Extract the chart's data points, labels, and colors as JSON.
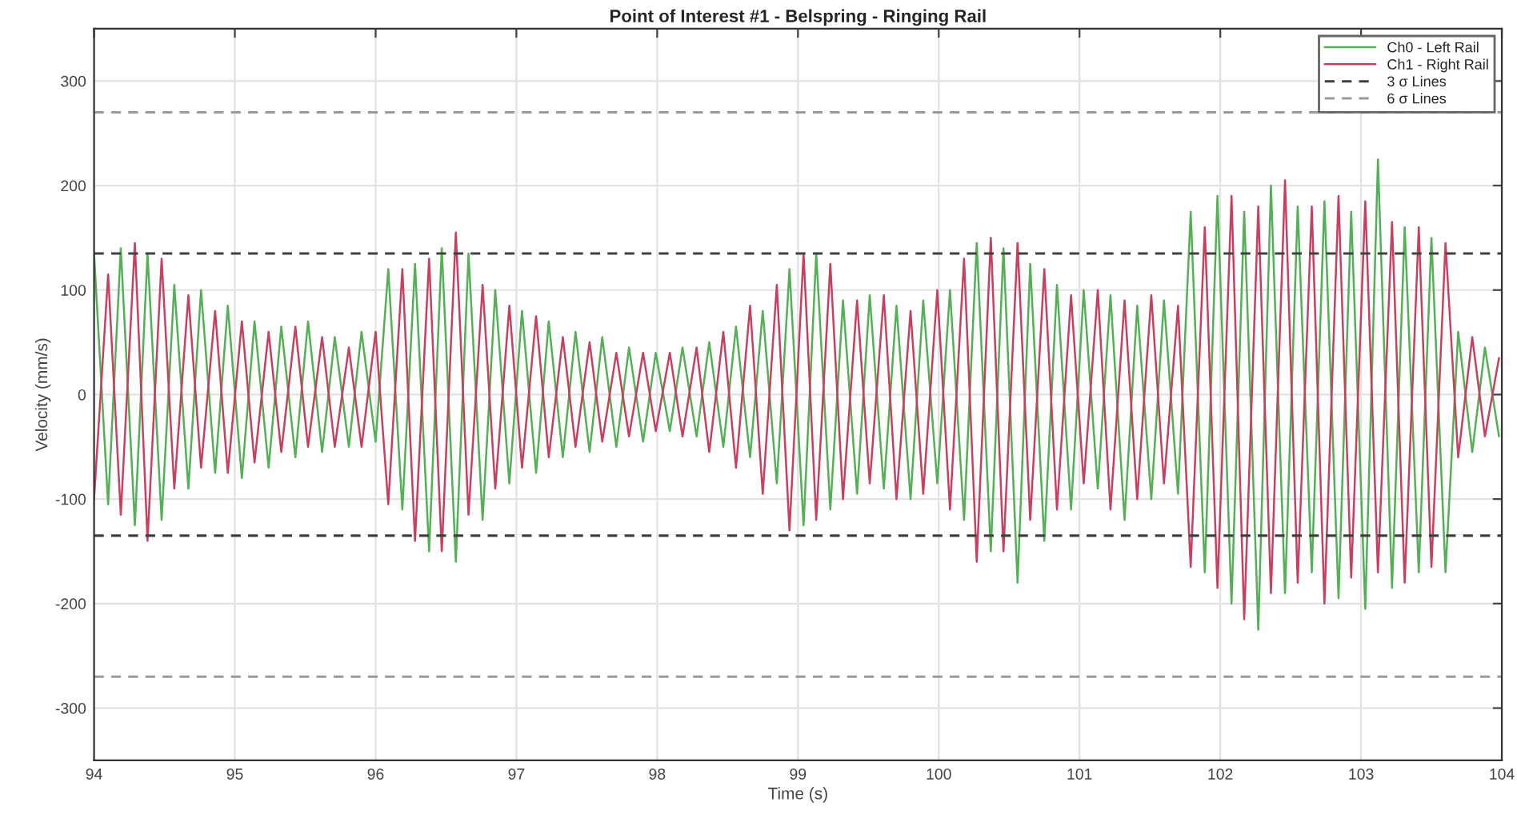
{
  "chart_data": {
    "type": "line",
    "title": "Point of Interest #1 - Belspring - Ringing Rail",
    "xlabel": "Time (s)",
    "ylabel": "Velocity (mm/s)",
    "x": [
      94.0,
      94.1,
      94.19,
      94.29,
      94.38,
      94.48,
      94.57,
      94.67,
      94.76,
      94.86,
      94.95,
      95.05,
      95.14,
      95.24,
      95.33,
      95.43,
      95.52,
      95.62,
      95.71,
      95.81,
      95.9,
      96.0,
      96.09,
      96.19,
      96.28,
      96.38,
      96.47,
      96.57,
      96.66,
      96.76,
      96.85,
      96.95,
      97.04,
      97.14,
      97.23,
      97.33,
      97.42,
      97.52,
      97.61,
      97.71,
      97.8,
      97.9,
      97.99,
      98.09,
      98.18,
      98.28,
      98.37,
      98.47,
      98.56,
      98.66,
      98.75,
      98.85,
      98.94,
      99.04,
      99.13,
      99.23,
      99.32,
      99.42,
      99.51,
      99.61,
      99.7,
      99.8,
      99.89,
      99.99,
      100.08,
      100.18,
      100.27,
      100.37,
      100.46,
      100.56,
      100.65,
      100.75,
      100.84,
      100.94,
      101.03,
      101.13,
      101.22,
      101.32,
      101.41,
      101.51,
      101.6,
      101.7,
      101.79,
      101.89,
      101.98,
      102.08,
      102.17,
      102.27,
      102.36,
      102.46,
      102.55,
      102.65,
      102.74,
      102.84,
      102.93,
      103.03,
      103.12,
      103.22,
      103.31,
      103.41,
      103.5,
      103.6,
      103.69,
      103.79,
      103.88,
      103.98
    ],
    "series": [
      {
        "name": "Ch0 - Left Rail",
        "color": "#55b055",
        "values": [
          135,
          -105,
          140,
          -125,
          135,
          -120,
          105,
          -90,
          100,
          -75,
          85,
          -80,
          70,
          -70,
          65,
          -60,
          70,
          -55,
          55,
          -50,
          60,
          -45,
          120,
          -110,
          125,
          -150,
          140,
          -160,
          135,
          -120,
          100,
          -85,
          80,
          -75,
          70,
          -60,
          60,
          -55,
          55,
          -50,
          45,
          -45,
          40,
          -35,
          45,
          -40,
          50,
          -50,
          65,
          -60,
          80,
          -85,
          120,
          -125,
          135,
          -110,
          90,
          -95,
          95,
          -90,
          85,
          -100,
          90,
          -85,
          100,
          -120,
          145,
          -150,
          140,
          -180,
          125,
          -140,
          105,
          -110,
          100,
          -90,
          95,
          -120,
          85,
          -100,
          90,
          -95,
          175,
          -170,
          190,
          -200,
          175,
          -225,
          200,
          -190,
          180,
          -170,
          185,
          -195,
          175,
          -205,
          225,
          -185,
          160,
          -170,
          150,
          -170,
          60,
          -55,
          45,
          -40
        ]
      },
      {
        "name": "Ch1 - Right Rail",
        "color": "#c84060",
        "values": [
          -100,
          115,
          -115,
          145,
          -140,
          130,
          -90,
          95,
          -70,
          80,
          -75,
          70,
          -65,
          60,
          -55,
          65,
          -50,
          55,
          -50,
          45,
          -50,
          60,
          -105,
          120,
          -140,
          130,
          -150,
          155,
          -115,
          105,
          -90,
          85,
          -70,
          75,
          -60,
          55,
          -50,
          50,
          -45,
          40,
          -40,
          40,
          -35,
          40,
          -40,
          45,
          -55,
          60,
          -70,
          85,
          -95,
          105,
          -130,
          135,
          -120,
          125,
          -100,
          90,
          -85,
          95,
          -100,
          80,
          -95,
          100,
          -110,
          130,
          -160,
          150,
          -150,
          145,
          -120,
          120,
          -110,
          95,
          -85,
          100,
          -110,
          90,
          -100,
          95,
          -85,
          85,
          -165,
          160,
          -185,
          190,
          -215,
          180,
          -190,
          205,
          -180,
          180,
          -200,
          190,
          -175,
          185,
          -170,
          165,
          -180,
          160,
          -165,
          145,
          -60,
          55,
          -40,
          35
        ]
      }
    ],
    "ref_lines": [
      {
        "axis": "y",
        "value": 135,
        "label": "3 σ Lines",
        "color": "#404040",
        "line_style": "dashed"
      },
      {
        "axis": "y",
        "value": -135,
        "color": "#404040",
        "line_style": "dashed"
      },
      {
        "axis": "y",
        "value": 270,
        "label": "6 σ Lines",
        "color": "#9a9a9a",
        "line_style": "dashed"
      },
      {
        "axis": "y",
        "value": -270,
        "color": "#9a9a9a",
        "line_style": "dashed"
      }
    ],
    "xlim": [
      94,
      104
    ],
    "ylim": [
      -350,
      350
    ],
    "xticks": [
      94,
      95,
      96,
      97,
      98,
      99,
      100,
      101,
      102,
      103,
      104
    ],
    "yticks": [
      -300,
      -200,
      -100,
      0,
      100,
      200,
      300
    ],
    "grid": true,
    "legend": "top right",
    "line_style": "solid",
    "marker": "none"
  }
}
